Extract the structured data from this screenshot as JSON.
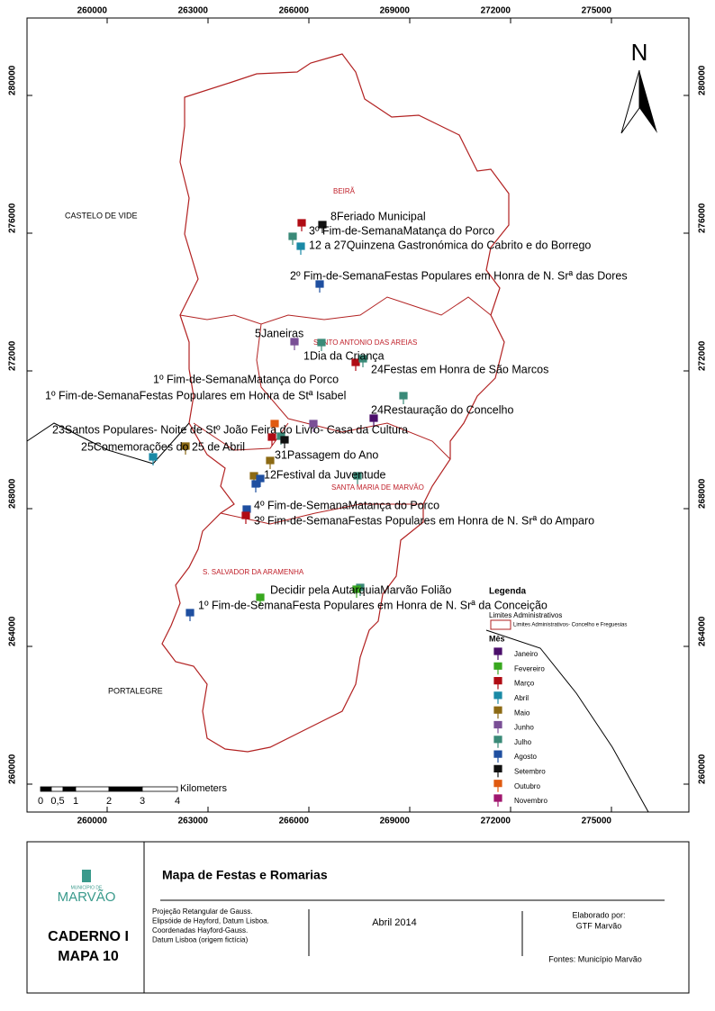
{
  "map": {
    "grid": {
      "x_ticks": [
        260000,
        263000,
        266000,
        269000,
        272000,
        275000
      ],
      "y_ticks": [
        280000,
        276000,
        272000,
        268000,
        264000,
        260000
      ]
    },
    "north": "N",
    "places": [
      {
        "label": "BEIRÃ",
        "type": "freguesia"
      },
      {
        "label": "CASTELO DE VIDE",
        "type": "concelho"
      },
      {
        "label": "SANTO ANTONIO DAS AREIAS",
        "type": "freguesia"
      },
      {
        "label": "SANTA MARIA DE MARVÃO",
        "type": "freguesia"
      },
      {
        "label": "S. SALVADOR DA ARAMENHA",
        "type": "freguesia"
      },
      {
        "label": "PORTALEGRE",
        "type": "concelho"
      }
    ],
    "events": [
      "8Feriado Municipal",
      "3º Fim-de-SemanaMatança do Porco",
      "12 a 27Quinzena Gastronómica do  Cabrito e do Borrego",
      "2º Fim-de-SemanaFestas Populares em Honra de N. Srª das Dores",
      "5Janeiras",
      "1Dia da Criança",
      "24Festas em Honra de São Marcos",
      "1º Fim-de-SemanaMatança do Porco",
      "1º Fim-de-SemanaFestas Populares em Honra de Stª Isabel",
      "24Restauração do Concelho",
      "23Santos Populares- Noite de Stº João Feira do Livro- Casa da Cultura",
      "25Comemorações do 25 de Abril",
      "31Passagem do Ano",
      "12Festival da Juventude",
      "4º Fim-de-SemanaMatança do Porco",
      "3º Fim-de-SemanaFestas Populares em Honra de N. Srª do Amparo",
      "Decidir pela AutarquiaMarvão Folião",
      "1º Fim-de-SemanaFesta Populares em Honra de N. Srª da Conceição"
    ],
    "legend": {
      "title": "Legenda",
      "limits_title": "Limites Administrativos",
      "limits_item": "Limites Administrativos- Concelho e Freguesias",
      "month_title": "Mês",
      "months": [
        {
          "name": "Janeiro",
          "color": "#4b0f6b"
        },
        {
          "name": "Fevereiro",
          "color": "#38a81f"
        },
        {
          "name": "Março",
          "color": "#b00c14"
        },
        {
          "name": "Abril",
          "color": "#1a8aa6"
        },
        {
          "name": "Maio",
          "color": "#8c6a14"
        },
        {
          "name": "Junho",
          "color": "#7a4f96"
        },
        {
          "name": "Julho",
          "color": "#3a8a78"
        },
        {
          "name": "Agosto",
          "color": "#1f4fa0"
        },
        {
          "name": "Setembro",
          "color": "#111111"
        },
        {
          "name": "Outubro",
          "color": "#e05a10"
        },
        {
          "name": "Novembro",
          "color": "#a0166e"
        }
      ]
    },
    "scale": {
      "labels": [
        "0",
        "0,5",
        "1",
        "2",
        "3",
        "4"
      ],
      "unit": "Kilometers"
    }
  },
  "title_block": {
    "logo_small": "MUNICÍPIO DE",
    "logo": "MARVÃO",
    "caderno": "CADERNO I",
    "mapa": "MAPA 10",
    "title": "Mapa de Festas e Romarias",
    "projection": [
      "Projeção Retangular de Gauss.",
      "Elipsóide de Hayford, Datum Lisboa.",
      "Coordenadas Hayford-Gauss.",
      "Datum Lisboa (origem fictícia)"
    ],
    "date": "Abril 2014",
    "author_label": "Elaborado por:",
    "author": "GTF Marvão",
    "sources": "Fontes: Município Marvão"
  }
}
